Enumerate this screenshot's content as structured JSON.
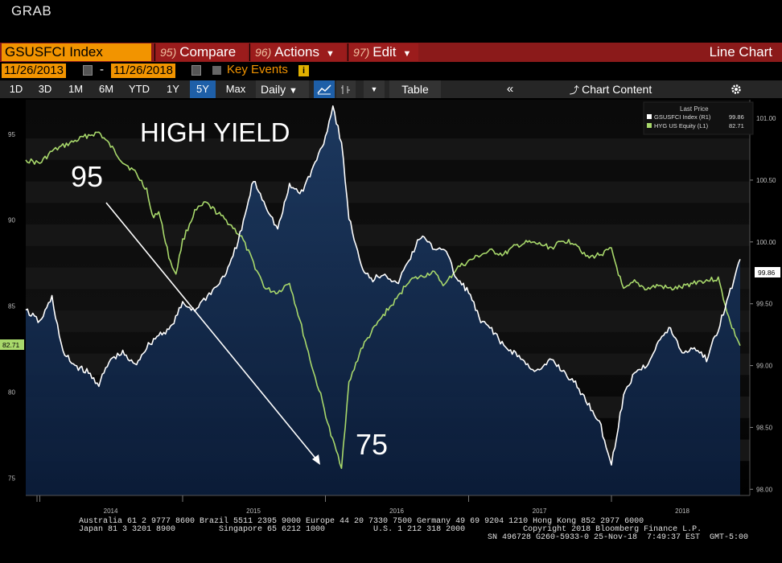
{
  "header": {
    "title": "GRAB"
  },
  "toolbar": {
    "ticker": "GSUSFCI Index",
    "compare": {
      "num": "95)",
      "label": "Compare"
    },
    "actions": {
      "num": "96)",
      "label": "Actions"
    },
    "edit": {
      "num": "97)",
      "label": "Edit"
    },
    "chart_type": "Line Chart",
    "start_date": "11/26/2013",
    "date_sep": "-",
    "end_date": "11/26/2018",
    "key_events": "Key Events",
    "info_glyph": "i",
    "periods": [
      "1D",
      "3D",
      "1M",
      "6M",
      "YTD",
      "1Y",
      "5Y",
      "Max"
    ],
    "selected_period": "5Y",
    "frequency": "Daily",
    "table_label": "Table",
    "chart_content_label": "Chart Content"
  },
  "legend": {
    "heading": "Last Price",
    "entries": [
      {
        "name": "GSUSFCI Index  (R1)",
        "value": "99.86",
        "color": "#ffffff"
      },
      {
        "name": "HYG US Equity  (L1)",
        "value": "82.71",
        "color": "#a8d86b"
      }
    ]
  },
  "annotations": {
    "title": "HIGH YIELD",
    "start_label": "95",
    "end_label": "75"
  },
  "chart_data": {
    "type": "line",
    "x_range": [
      "2013-11-26",
      "2018-11-26"
    ],
    "x_ticks": [
      "2014",
      "2015",
      "2016",
      "2017",
      "2018"
    ],
    "left_axis": {
      "ticks": [
        75,
        80,
        85,
        90,
        95
      ],
      "range": [
        74,
        97
      ],
      "last": "82.71"
    },
    "right_axis": {
      "ticks": [
        "98.00",
        "98.50",
        "99.00",
        "99.50",
        "100.00",
        "100.50",
        "101.00"
      ],
      "range": [
        97.95,
        101.15
      ],
      "last": "99.86"
    },
    "series": [
      {
        "name": "HYG US Equity",
        "axis": "left",
        "color": "#a8d86b",
        "points": [
          [
            "2013-11-26",
            93.5
          ],
          [
            "2014-01-01",
            93.3
          ],
          [
            "2014-02-01",
            94.0
          ],
          [
            "2014-03-01",
            94.3
          ],
          [
            "2014-04-01",
            94.6
          ],
          [
            "2014-05-01",
            94.9
          ],
          [
            "2014-06-01",
            95.1
          ],
          [
            "2014-07-01",
            94.3
          ],
          [
            "2014-08-01",
            93.4
          ],
          [
            "2014-09-01",
            92.8
          ],
          [
            "2014-10-01",
            91.8
          ],
          [
            "2014-10-15",
            90.2
          ],
          [
            "2014-11-01",
            90.5
          ],
          [
            "2014-12-01",
            87.5
          ],
          [
            "2014-12-15",
            86.9
          ],
          [
            "2015-01-01",
            88.8
          ],
          [
            "2015-02-01",
            90.5
          ],
          [
            "2015-03-01",
            91.0
          ],
          [
            "2015-04-01",
            90.4
          ],
          [
            "2015-05-01",
            89.8
          ],
          [
            "2015-06-01",
            89.0
          ],
          [
            "2015-07-01",
            87.5
          ],
          [
            "2015-08-01",
            86.0
          ],
          [
            "2015-09-01",
            85.8
          ],
          [
            "2015-10-01",
            86.4
          ],
          [
            "2015-11-01",
            83.8
          ],
          [
            "2015-12-01",
            81.2
          ],
          [
            "2015-12-20",
            79.8
          ],
          [
            "2016-01-15",
            77.5
          ],
          [
            "2016-02-11",
            75.7
          ],
          [
            "2016-03-01",
            80.5
          ],
          [
            "2016-04-01",
            82.5
          ],
          [
            "2016-05-01",
            83.6
          ],
          [
            "2016-06-01",
            84.6
          ],
          [
            "2016-07-01",
            85.4
          ],
          [
            "2016-08-01",
            86.5
          ],
          [
            "2016-09-01",
            86.7
          ],
          [
            "2016-10-01",
            87.0
          ],
          [
            "2016-11-01",
            86.2
          ],
          [
            "2016-12-01",
            87.2
          ],
          [
            "2017-01-01",
            87.6
          ],
          [
            "2017-02-01",
            88.0
          ],
          [
            "2017-03-01",
            88.2
          ],
          [
            "2017-04-01",
            88.0
          ],
          [
            "2017-05-01",
            88.5
          ],
          [
            "2017-06-01",
            88.7
          ],
          [
            "2017-07-01",
            88.6
          ],
          [
            "2017-08-01",
            88.4
          ],
          [
            "2017-09-01",
            88.8
          ],
          [
            "2017-10-01",
            88.7
          ],
          [
            "2017-11-01",
            87.8
          ],
          [
            "2017-12-01",
            88.0
          ],
          [
            "2018-01-01",
            88.3
          ],
          [
            "2018-02-01",
            85.9
          ],
          [
            "2018-03-01",
            86.4
          ],
          [
            "2018-04-01",
            86.0
          ],
          [
            "2018-05-01",
            86.2
          ],
          [
            "2018-06-01",
            86.0
          ],
          [
            "2018-07-01",
            86.1
          ],
          [
            "2018-08-01",
            86.4
          ],
          [
            "2018-09-01",
            86.5
          ],
          [
            "2018-10-01",
            86.6
          ],
          [
            "2018-11-01",
            84.0
          ],
          [
            "2018-11-26",
            82.71
          ]
        ]
      },
      {
        "name": "GSUSFCI Index",
        "axis": "right",
        "color": "#ffffff",
        "points": [
          [
            "2013-11-26",
            99.45
          ],
          [
            "2014-01-01",
            99.35
          ],
          [
            "2014-02-01",
            99.55
          ],
          [
            "2014-03-01",
            99.1
          ],
          [
            "2014-04-01",
            99.0
          ],
          [
            "2014-05-01",
            98.95
          ],
          [
            "2014-06-01",
            98.85
          ],
          [
            "2014-07-01",
            99.05
          ],
          [
            "2014-08-01",
            99.1
          ],
          [
            "2014-09-01",
            99.0
          ],
          [
            "2014-10-01",
            99.15
          ],
          [
            "2014-11-01",
            99.25
          ],
          [
            "2014-12-01",
            99.3
          ],
          [
            "2015-01-01",
            99.5
          ],
          [
            "2015-02-01",
            99.45
          ],
          [
            "2015-03-01",
            99.55
          ],
          [
            "2015-04-01",
            99.65
          ],
          [
            "2015-05-01",
            99.8
          ],
          [
            "2015-06-01",
            100.1
          ],
          [
            "2015-07-01",
            100.5
          ],
          [
            "2015-08-01",
            100.3
          ],
          [
            "2015-09-01",
            100.1
          ],
          [
            "2015-10-01",
            100.45
          ],
          [
            "2015-11-01",
            100.4
          ],
          [
            "2015-12-01",
            100.6
          ],
          [
            "2016-01-01",
            100.85
          ],
          [
            "2016-01-20",
            101.1
          ],
          [
            "2016-02-11",
            100.8
          ],
          [
            "2016-03-01",
            100.2
          ],
          [
            "2016-04-01",
            99.8
          ],
          [
            "2016-05-01",
            99.7
          ],
          [
            "2016-06-01",
            99.75
          ],
          [
            "2016-07-01",
            99.65
          ],
          [
            "2016-08-01",
            99.85
          ],
          [
            "2016-09-01",
            100.05
          ],
          [
            "2016-10-01",
            99.95
          ],
          [
            "2016-11-01",
            99.95
          ],
          [
            "2016-12-01",
            99.7
          ],
          [
            "2017-01-01",
            99.6
          ],
          [
            "2017-02-01",
            99.35
          ],
          [
            "2017-03-01",
            99.3
          ],
          [
            "2017-04-01",
            99.15
          ],
          [
            "2017-05-01",
            99.1
          ],
          [
            "2017-06-01",
            99.0
          ],
          [
            "2017-07-01",
            98.95
          ],
          [
            "2017-08-01",
            99.05
          ],
          [
            "2017-09-01",
            98.95
          ],
          [
            "2017-10-01",
            98.85
          ],
          [
            "2017-11-01",
            98.7
          ],
          [
            "2017-12-01",
            98.55
          ],
          [
            "2018-01-01",
            98.2
          ],
          [
            "2018-02-01",
            98.75
          ],
          [
            "2018-03-01",
            98.95
          ],
          [
            "2018-04-01",
            99.0
          ],
          [
            "2018-05-01",
            99.2
          ],
          [
            "2018-06-01",
            99.3
          ],
          [
            "2018-07-01",
            99.1
          ],
          [
            "2018-08-01",
            99.15
          ],
          [
            "2018-09-01",
            99.05
          ],
          [
            "2018-10-01",
            99.3
          ],
          [
            "2018-11-01",
            99.6
          ],
          [
            "2018-11-26",
            99.86
          ]
        ]
      }
    ]
  },
  "footer": {
    "line1": "Australia 61 2 9777 8600 Brazil 5511 2395 9000 Europe 44 20 7330 7500 Germany 49 69 9204 1210 Hong Kong 852 2977 6000",
    "line2": "Japan 81 3 3201 8900         Singapore 65 6212 1000          U.S. 1 212 318 2000            Copyright 2018 Bloomberg Finance L.P.",
    "line3": "SN 496728 G260-5933-0 25-Nov-18  7:49:37 EST  GMT-5:00"
  }
}
